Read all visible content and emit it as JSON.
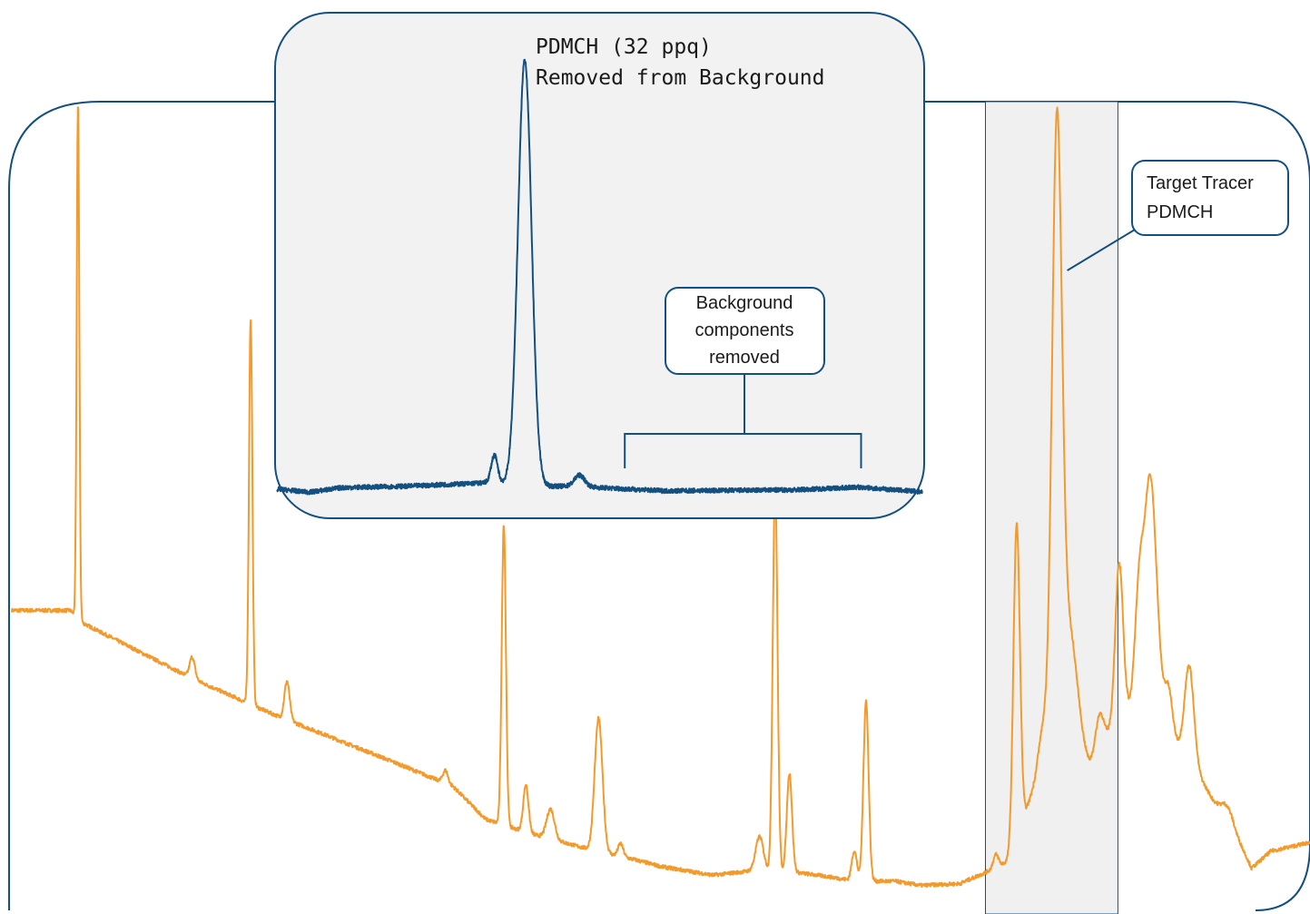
{
  "colors": {
    "main_trace": "#f39a2c",
    "inset_trace": "#14507f",
    "frame": "#14507f",
    "inset_fill": "#f2f2f2",
    "highlight_fill": "#f0f0f0"
  },
  "chart_data": [
    {
      "type": "line",
      "role": "main-chromatogram",
      "title": "",
      "xlabel": "",
      "ylabel": "",
      "axes_shown": false,
      "grid": false,
      "xlim": [
        0,
        100
      ],
      "ylim": [
        0,
        100
      ],
      "highlight_region": {
        "x": [
          75.0,
          85.2
        ]
      },
      "annotation": {
        "lines": [
          "Target Tracer",
          "PDMCH"
        ],
        "target_x": 80.6
      },
      "baseline": [
        [
          0,
          33
        ],
        [
          4.5,
          33
        ],
        [
          5.5,
          31.5
        ],
        [
          14,
          25
        ],
        [
          17,
          23
        ],
        [
          20,
          21
        ],
        [
          25,
          18
        ],
        [
          30,
          15
        ],
        [
          34,
          12.5
        ],
        [
          36.5,
          8.7
        ],
        [
          40,
          7
        ],
        [
          45,
          5
        ],
        [
          48,
          4
        ],
        [
          50,
          3.2
        ],
        [
          54,
          2.2
        ],
        [
          57,
          2.7
        ],
        [
          60,
          2.6
        ],
        [
          63,
          2.0
        ],
        [
          65,
          1.5
        ],
        [
          68,
          1.5
        ],
        [
          70,
          1.0
        ],
        [
          73,
          1.2
        ],
        [
          75,
          2.5
        ],
        [
          77,
          4
        ],
        [
          79,
          14
        ],
        [
          81,
          18
        ],
        [
          83,
          15
        ],
        [
          85,
          20
        ],
        [
          87,
          23
        ],
        [
          89,
          19
        ],
        [
          91,
          15
        ],
        [
          92.5,
          11
        ],
        [
          94,
          8
        ],
        [
          95.5,
          3
        ],
        [
          97,
          5
        ],
        [
          100,
          6
        ]
      ],
      "peaks": [
        {
          "x": 5.1,
          "height": 60,
          "width": 0.1
        },
        {
          "x": 13.9,
          "height": 2.5,
          "width": 0.2
        },
        {
          "x": 18.4,
          "height": 45,
          "width": 0.13
        },
        {
          "x": 21.2,
          "height": 4.5,
          "width": 0.2
        },
        {
          "x": 33.4,
          "height": 1.5,
          "width": 0.2
        },
        {
          "x": 37.9,
          "height": 35,
          "width": 0.16
        },
        {
          "x": 39.6,
          "height": 5.5,
          "width": 0.2
        },
        {
          "x": 41.5,
          "height": 3.5,
          "width": 0.3
        },
        {
          "x": 45.2,
          "height": 15.5,
          "width": 0.3
        },
        {
          "x": 46.9,
          "height": 1.5,
          "width": 0.2
        },
        {
          "x": 57.6,
          "height": 4,
          "width": 0.3
        },
        {
          "x": 58.8,
          "height": 45.5,
          "width": 0.18
        },
        {
          "x": 59.9,
          "height": 11.5,
          "width": 0.2
        },
        {
          "x": 64.9,
          "height": 3.5,
          "width": 0.2
        },
        {
          "x": 65.8,
          "height": 21,
          "width": 0.2
        },
        {
          "x": 75.8,
          "height": 1.5,
          "width": 0.2
        },
        {
          "x": 77.4,
          "height": 37,
          "width": 0.25
        },
        {
          "x": 79.4,
          "height": 4,
          "width": 0.3
        },
        {
          "x": 80.5,
          "height": 71,
          "width": 0.38
        },
        {
          "x": 81.5,
          "height": 13,
          "width": 0.6
        },
        {
          "x": 83.8,
          "height": 4,
          "width": 0.3
        },
        {
          "x": 85.3,
          "height": 18,
          "width": 0.3
        },
        {
          "x": 86.8,
          "height": 10,
          "width": 0.3
        },
        {
          "x": 87.7,
          "height": 27,
          "width": 0.5
        },
        {
          "x": 89.1,
          "height": 5,
          "width": 0.3
        },
        {
          "x": 90.7,
          "height": 11,
          "width": 0.35
        },
        {
          "x": 93.6,
          "height": 1.5,
          "width": 0.4
        }
      ]
    },
    {
      "type": "line",
      "role": "inset-chromatogram",
      "title": "",
      "xlabel": "",
      "ylabel": "",
      "axes_shown": false,
      "grid": false,
      "xlim": [
        0,
        100
      ],
      "ylim": [
        0,
        100
      ],
      "annotation": {
        "lines": [
          "PDMCH (32 ppq)",
          "Removed from  Background"
        ],
        "callout": [
          "Background",
          "components",
          "removed"
        ],
        "bracket_x": [
          53.9,
          90.5
        ]
      },
      "baseline": [
        [
          0,
          2.2
        ],
        [
          5,
          1.5
        ],
        [
          10,
          2.5
        ],
        [
          20,
          2.8
        ],
        [
          30,
          3.4
        ],
        [
          33,
          3.6
        ],
        [
          40,
          2.8
        ],
        [
          45,
          2.8
        ],
        [
          50,
          2.5
        ],
        [
          60,
          1.8
        ],
        [
          70,
          1.9
        ],
        [
          80,
          2.0
        ],
        [
          90,
          2.6
        ],
        [
          100,
          1.6
        ]
      ],
      "peaks": [
        {
          "x": 33.7,
          "height": 6,
          "width": 0.5
        },
        {
          "x": 38.4,
          "height": 92,
          "width": 1.05
        },
        {
          "x": 46.9,
          "height": 2.5,
          "width": 0.8
        }
      ]
    }
  ]
}
